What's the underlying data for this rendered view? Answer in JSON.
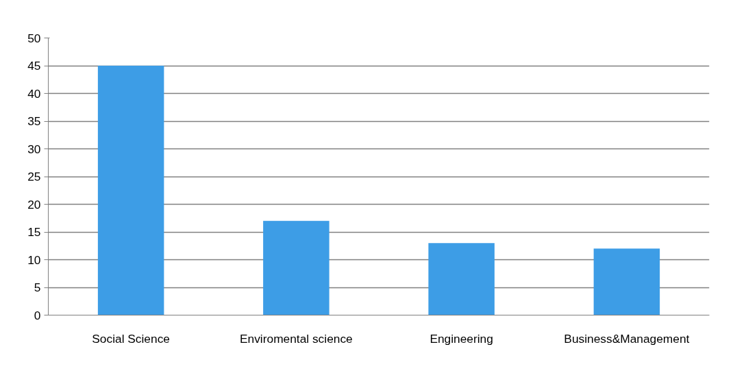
{
  "chart_data": {
    "type": "bar",
    "categories": [
      "Social Science",
      "Enviromental science",
      "Engineering",
      "Business&Management"
    ],
    "values": [
      45,
      17,
      13,
      12
    ],
    "color": "#3d9de6",
    "ylim": [
      0,
      50
    ],
    "yticks": [
      0,
      5,
      10,
      15,
      20,
      25,
      30,
      35,
      40,
      45,
      50
    ],
    "grid": "y"
  }
}
